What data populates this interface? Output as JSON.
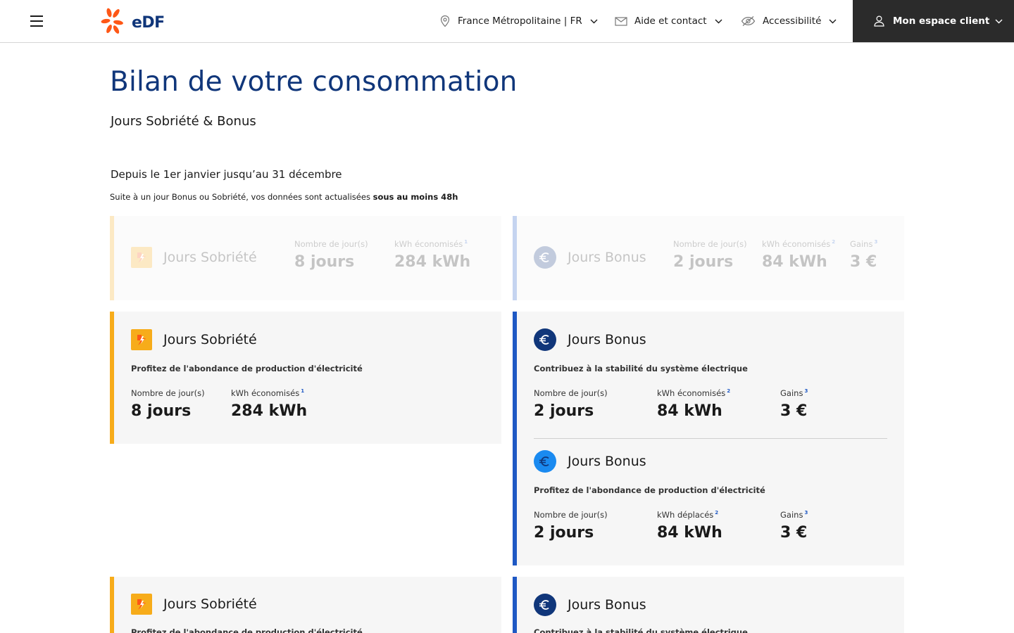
{
  "header": {
    "logo_text": "eDF",
    "region": "France Métropolitaine | FR",
    "contact": "Aide et contact",
    "accessibility": "Accessibilité",
    "account": "Mon espace client"
  },
  "page": {
    "title": "Bilan de votre consommation",
    "subtitle": "Jours Sobriété & Bonus",
    "period": "Depuis le 1er janvier jusqu’au 31 décembre",
    "note_prefix": "Suite à un jour Bonus ou Sobriété, vos données sont actualisées ",
    "note_bold": "sous au moins 48h"
  },
  "summary": {
    "sobriete": {
      "title": "Jours Sobriété",
      "days_label": "Nombre de jour(s)",
      "days_value": "8 jours",
      "kwh_label": "kWh économisés",
      "kwh_sup": "1",
      "kwh_value": "284 kWh"
    },
    "bonus": {
      "title": "Jours Bonus",
      "days_label": "Nombre de jour(s)",
      "days_value": "2 jours",
      "kwh_label": "kWh économisés",
      "kwh_sup": "2",
      "kwh_value": "84 kWh",
      "gains_label": "Gains",
      "gains_sup": "3",
      "gains_value": "3 €"
    }
  },
  "sobriete_card": {
    "title": "Jours Sobriété",
    "description": "Profitez de l'abondance de production d'électricité",
    "days_label": "Nombre de jour(s)",
    "days_value": "8 jours",
    "kwh_label": "kWh économisés",
    "kwh_sup": "1",
    "kwh_value": "284 kWh"
  },
  "bonus_card": {
    "first": {
      "title": "Jours Bonus",
      "description": "Contribuez à la stabilité du système électrique",
      "days_label": "Nombre de jour(s)",
      "days_value": "2 jours",
      "kwh_label": "kWh économisés",
      "kwh_sup": "2",
      "kwh_value": "84 kWh",
      "gains_label": "Gains",
      "gains_sup": "3",
      "gains_value": "3 €"
    },
    "second": {
      "title": "Jours Bonus",
      "description": "Profitez de l'abondance de production d'électricité",
      "days_label": "Nombre de jour(s)",
      "days_value": "2 jours",
      "kwh_label": "kWh déplacés",
      "kwh_sup": "2",
      "kwh_value": "84 kWh",
      "gains_label": "Gains",
      "gains_sup": "3",
      "gains_value": "3 €"
    }
  },
  "bottom": {
    "sobriete_title": "Jours Sobriété",
    "sobriete_description": "Profitez de l'abondance de production d'électricité",
    "bonus_title": "Jours Bonus",
    "bonus_description": "Contribuez à la stabilité du système électrique"
  },
  "colors": {
    "brand_blue": "#10367a",
    "sobriete_accent": "#f7ac1a",
    "bonus_accent": "#1e58c4",
    "edf_orange": "#fe5716",
    "account_bg": "#2b2b2b"
  },
  "icons": {
    "menu": "hamburger-icon",
    "region": "location-pin-icon",
    "contact": "envelope-icon",
    "accessibility": "eye-slash-icon",
    "account": "user-icon",
    "sobriete": "lightning-down-icon",
    "bonus": "euro-icon"
  }
}
